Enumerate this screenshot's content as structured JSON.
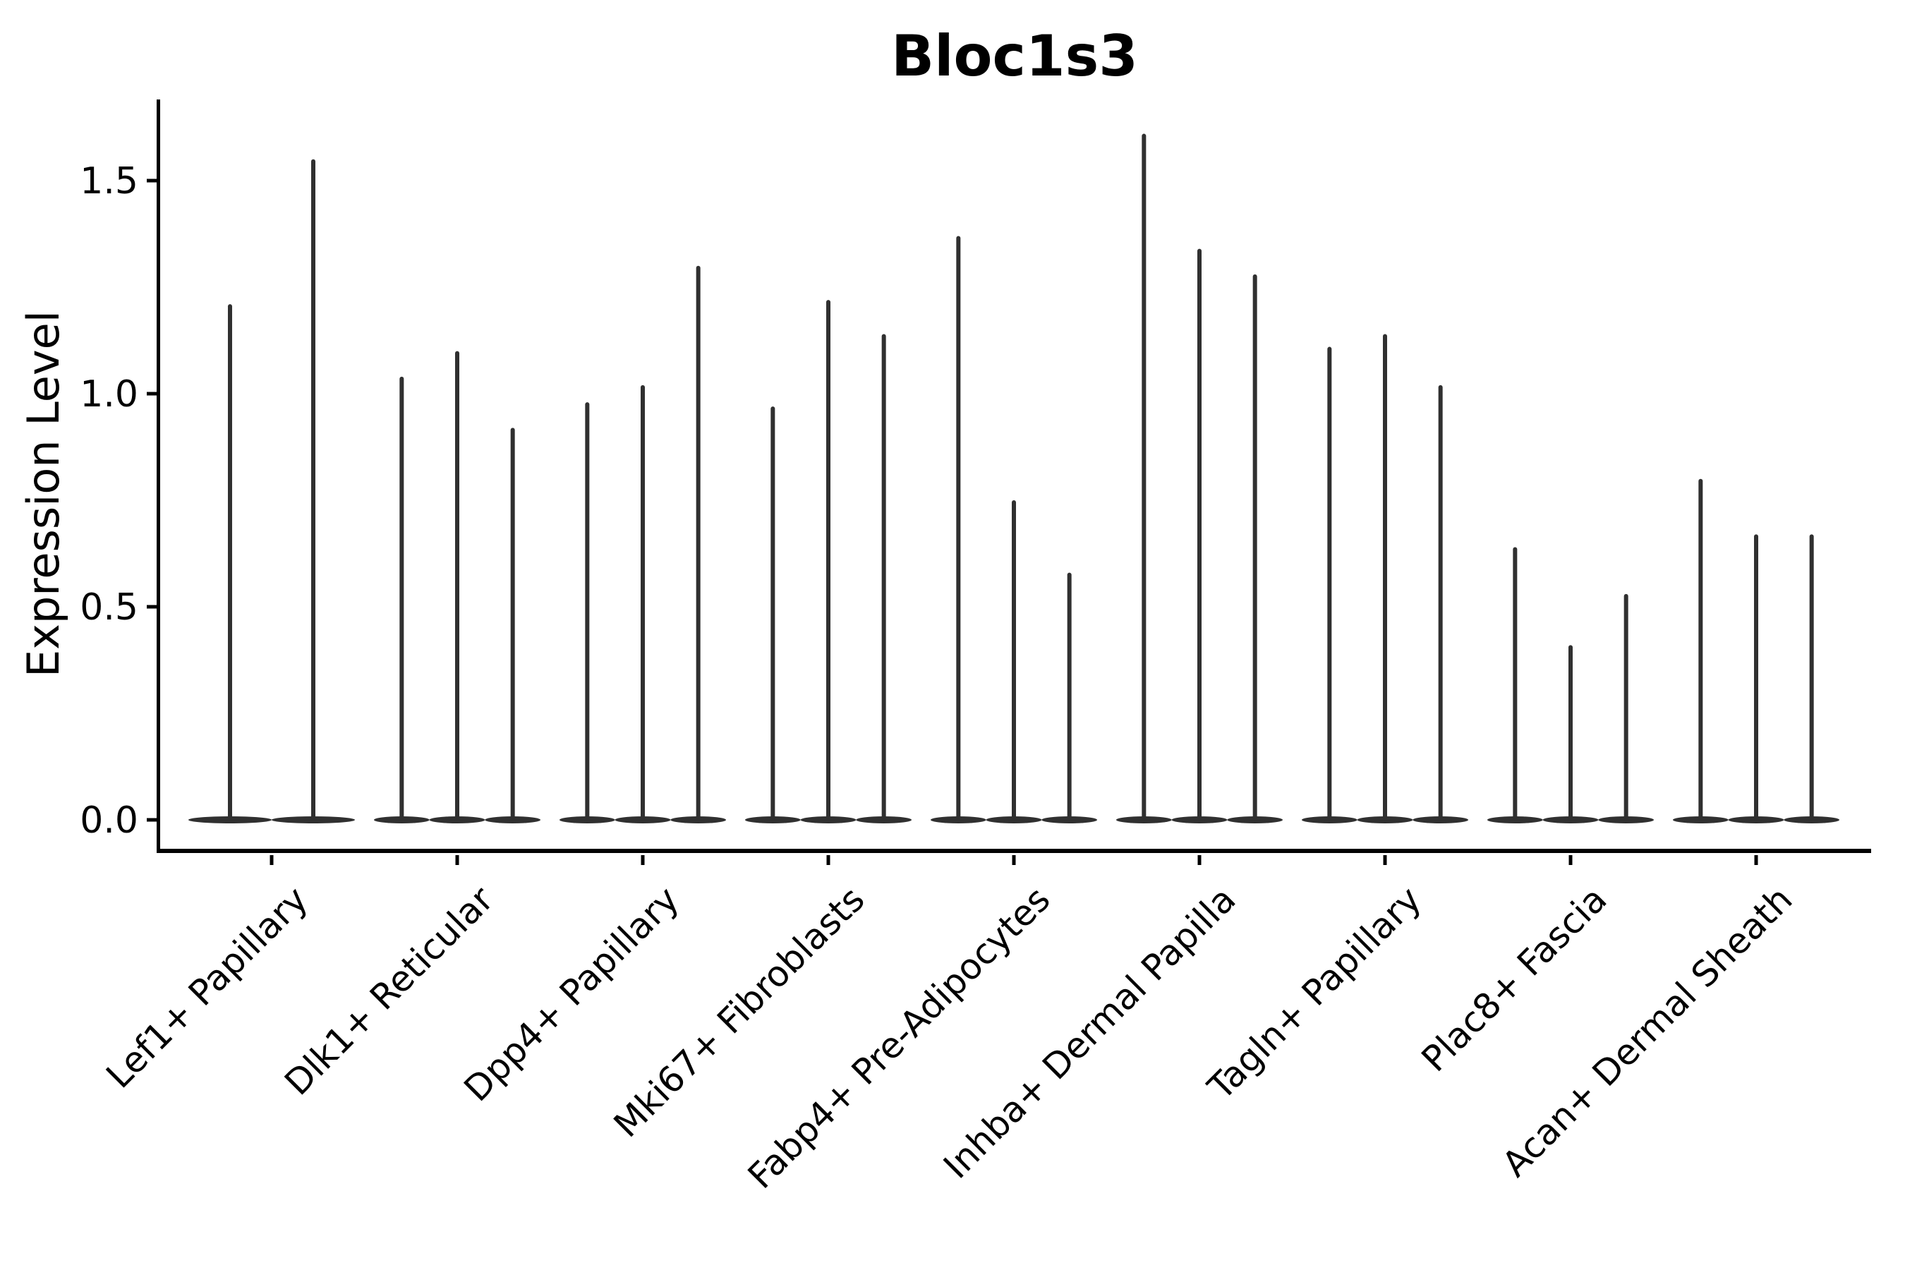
{
  "chart_data": {
    "type": "violin",
    "title": "Bloc1s3",
    "xlabel": "",
    "ylabel": "Expression Level",
    "ylim": [
      0,
      1.69
    ],
    "yticks": [
      0.0,
      0.5,
      1.0,
      1.5
    ],
    "ytick_labels": [
      "0.0",
      "0.5",
      "1.0",
      "1.5"
    ],
    "grid": "off",
    "legend": "none",
    "violin_color": "#303030",
    "axis_color": "#000000",
    "categories": [
      "Lef1+ Papillary",
      "Dlk1+ Reticular",
      "Dpp4+ Papillary",
      "Mki67+ Fibroblasts",
      "Fabp4+ Pre-Adipocytes",
      "Inhba+ Dermal Papilla",
      "Tagln+ Papillary",
      "Plac8+ Fascia",
      "Acan+ Dermal Sheath"
    ],
    "series_note": "Each category shows thin spike violins; values are the max expression (spike top) of each violin, left to right. Violin bodies are flat at 0 (most cells zero).",
    "violin_maxima": [
      [
        1.21,
        1.55
      ],
      [
        1.04,
        1.1,
        0.92
      ],
      [
        0.98,
        1.02,
        1.3
      ],
      [
        0.97,
        1.22,
        1.14
      ],
      [
        1.37,
        0.75,
        0.58
      ],
      [
        1.61,
        1.34,
        1.28
      ],
      [
        1.11,
        1.14,
        1.02
      ],
      [
        0.64,
        0.41,
        0.53
      ],
      [
        0.8,
        0.67,
        0.67
      ]
    ]
  }
}
